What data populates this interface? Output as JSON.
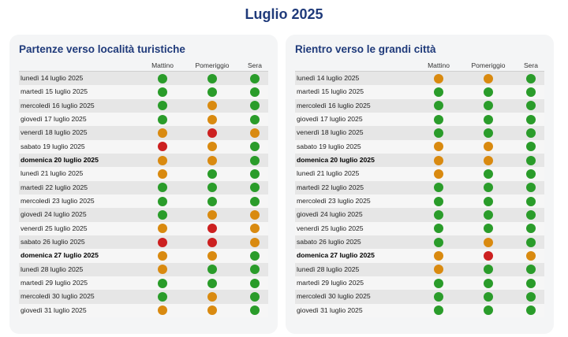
{
  "title": "Luglio 2025",
  "colors": {
    "green": "#2a9c2a",
    "orange": "#d98a10",
    "red": "#cc2020"
  },
  "columns": [
    "Mattino",
    "Pomeriggio",
    "Sera"
  ],
  "panels": [
    {
      "title": "Partenze verso località turistiche",
      "rows": [
        {
          "date": "lunedì 14 luglio 2025",
          "bold": false,
          "status": [
            "green",
            "green",
            "green"
          ]
        },
        {
          "date": "martedì 15 luglio 2025",
          "bold": false,
          "status": [
            "green",
            "green",
            "green"
          ]
        },
        {
          "date": "mercoledì 16 luglio 2025",
          "bold": false,
          "status": [
            "green",
            "orange",
            "green"
          ]
        },
        {
          "date": "giovedì 17 luglio 2025",
          "bold": false,
          "status": [
            "green",
            "orange",
            "green"
          ]
        },
        {
          "date": "venerdì 18 luglio 2025",
          "bold": false,
          "status": [
            "orange",
            "red",
            "orange"
          ]
        },
        {
          "date": "sabato 19 luglio 2025",
          "bold": false,
          "status": [
            "red",
            "orange",
            "green"
          ]
        },
        {
          "date": "domenica 20 luglio 2025",
          "bold": true,
          "status": [
            "orange",
            "orange",
            "green"
          ]
        },
        {
          "date": "lunedì 21 luglio 2025",
          "bold": false,
          "status": [
            "orange",
            "green",
            "green"
          ]
        },
        {
          "date": "martedì 22 luglio 2025",
          "bold": false,
          "status": [
            "green",
            "green",
            "green"
          ]
        },
        {
          "date": "mercoledì 23 luglio 2025",
          "bold": false,
          "status": [
            "green",
            "green",
            "green"
          ]
        },
        {
          "date": "giovedì 24 luglio 2025",
          "bold": false,
          "status": [
            "green",
            "orange",
            "orange"
          ]
        },
        {
          "date": "venerdì 25 luglio 2025",
          "bold": false,
          "status": [
            "orange",
            "red",
            "orange"
          ]
        },
        {
          "date": "sabato 26 luglio 2025",
          "bold": false,
          "status": [
            "red",
            "red",
            "orange"
          ]
        },
        {
          "date": "domenica 27 luglio 2025",
          "bold": true,
          "status": [
            "orange",
            "orange",
            "green"
          ]
        },
        {
          "date": "lunedì 28 luglio 2025",
          "bold": false,
          "status": [
            "orange",
            "green",
            "green"
          ]
        },
        {
          "date": "martedì 29 luglio 2025",
          "bold": false,
          "status": [
            "green",
            "green",
            "green"
          ]
        },
        {
          "date": "mercoledì 30 luglio 2025",
          "bold": false,
          "status": [
            "green",
            "orange",
            "green"
          ]
        },
        {
          "date": "giovedì 31 luglio 2025",
          "bold": false,
          "status": [
            "orange",
            "orange",
            "green"
          ]
        }
      ]
    },
    {
      "title": "Rientro verso le grandi città",
      "rows": [
        {
          "date": "lunedì 14 luglio 2025",
          "bold": false,
          "status": [
            "orange",
            "orange",
            "green"
          ]
        },
        {
          "date": "martedì 15 luglio 2025",
          "bold": false,
          "status": [
            "green",
            "green",
            "green"
          ]
        },
        {
          "date": "mercoledì 16 luglio 2025",
          "bold": false,
          "status": [
            "green",
            "green",
            "green"
          ]
        },
        {
          "date": "giovedì 17 luglio 2025",
          "bold": false,
          "status": [
            "green",
            "green",
            "green"
          ]
        },
        {
          "date": "venerdì 18 luglio 2025",
          "bold": false,
          "status": [
            "green",
            "green",
            "green"
          ]
        },
        {
          "date": "sabato 19 luglio 2025",
          "bold": false,
          "status": [
            "orange",
            "orange",
            "green"
          ]
        },
        {
          "date": "domenica 20 luglio 2025",
          "bold": true,
          "status": [
            "orange",
            "orange",
            "green"
          ]
        },
        {
          "date": "lunedì 21 luglio 2025",
          "bold": false,
          "status": [
            "orange",
            "green",
            "green"
          ]
        },
        {
          "date": "martedì 22 luglio 2025",
          "bold": false,
          "status": [
            "green",
            "green",
            "green"
          ]
        },
        {
          "date": "mercoledì 23 luglio 2025",
          "bold": false,
          "status": [
            "green",
            "green",
            "green"
          ]
        },
        {
          "date": "giovedì 24 luglio 2025",
          "bold": false,
          "status": [
            "green",
            "green",
            "green"
          ]
        },
        {
          "date": "venerdì 25 luglio 2025",
          "bold": false,
          "status": [
            "green",
            "green",
            "green"
          ]
        },
        {
          "date": "sabato 26 luglio 2025",
          "bold": false,
          "status": [
            "green",
            "orange",
            "green"
          ]
        },
        {
          "date": "domenica 27 luglio 2025",
          "bold": true,
          "status": [
            "orange",
            "red",
            "orange"
          ]
        },
        {
          "date": "lunedì 28 luglio 2025",
          "bold": false,
          "status": [
            "orange",
            "green",
            "green"
          ]
        },
        {
          "date": "martedì 29 luglio 2025",
          "bold": false,
          "status": [
            "green",
            "green",
            "green"
          ]
        },
        {
          "date": "mercoledì 30 luglio 2025",
          "bold": false,
          "status": [
            "green",
            "green",
            "green"
          ]
        },
        {
          "date": "giovedì 31 luglio 2025",
          "bold": false,
          "status": [
            "green",
            "green",
            "green"
          ]
        }
      ]
    }
  ]
}
